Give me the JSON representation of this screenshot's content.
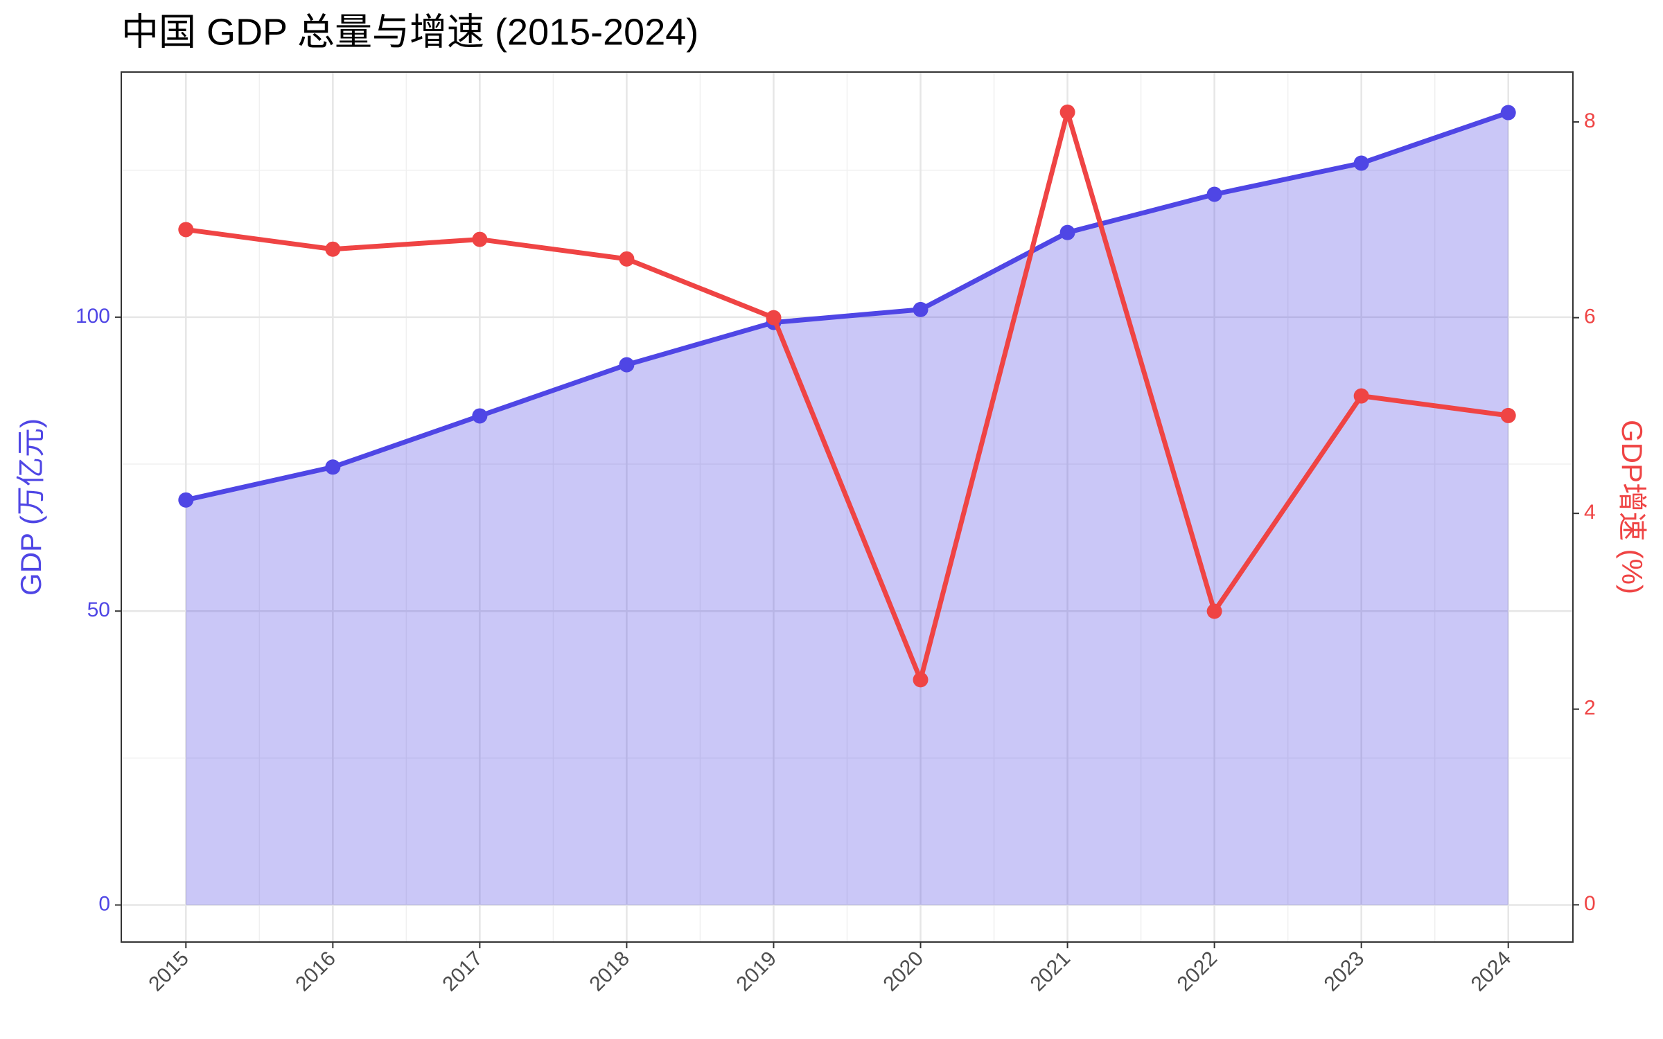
{
  "chart_data": {
    "type": "line",
    "title": "中国 GDP 总量与增速 (2015-2024)",
    "categories": [
      "2015",
      "2016",
      "2017",
      "2018",
      "2019",
      "2020",
      "2021",
      "2022",
      "2023",
      "2024"
    ],
    "ylabel": "GDP (万亿元)",
    "y2label": "GDP增速 (%)",
    "ylim": [
      -6.3,
      141.7
    ],
    "yticks": [
      0,
      50,
      100
    ],
    "y2lim": [
      -0.38,
      8.51
    ],
    "y2ticks": [
      0,
      2,
      4,
      6,
      8
    ],
    "grid": true,
    "series": [
      {
        "name": "GDP",
        "color": "#4f46e5",
        "area": true,
        "values": [
          68.9,
          74.5,
          83.2,
          91.9,
          99.1,
          101.3,
          114.4,
          120.9,
          126.2,
          134.8
        ]
      },
      {
        "name": "GDP增速",
        "color": "#ef4444",
        "axis": "y2",
        "values": [
          6.9,
          6.7,
          6.8,
          6.6,
          6.0,
          2.3,
          8.1,
          3.0,
          5.2,
          5.0
        ]
      }
    ]
  }
}
